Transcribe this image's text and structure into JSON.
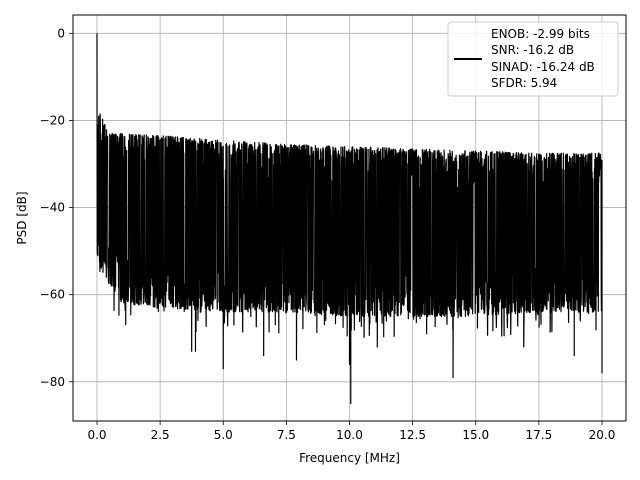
{
  "chart_data": {
    "type": "line",
    "title": "",
    "xlabel": "Frequency [MHz]",
    "ylabel": "PSD [dB]",
    "xlim": [
      -0.95,
      20.95
    ],
    "ylim": [
      -89,
      4.2
    ],
    "x_ticks": [
      0.0,
      2.5,
      5.0,
      7.5,
      10.0,
      12.5,
      15.0,
      17.5,
      20.0
    ],
    "x_tick_labels": [
      "0.0",
      "2.5",
      "5.0",
      "7.5",
      "10.0",
      "12.5",
      "15.0",
      "17.5",
      "20.0"
    ],
    "y_ticks": [
      0,
      -20,
      -40,
      -60,
      -80
    ],
    "y_tick_labels": [
      "0",
      "−20",
      "−40",
      "−60",
      "−80"
    ],
    "grid": true,
    "legend_position": "top-right",
    "series": [
      {
        "color": "#000000",
        "peak": {
          "x": 0.0,
          "y": 0.0
        },
        "noise_envelope": {
          "x": [
            0.0,
            0.5,
            1.0,
            2.5,
            5.0,
            7.5,
            10.0,
            12.5,
            15.0,
            17.5,
            20.0
          ],
          "upper": [
            -17,
            -23,
            -23,
            -23.5,
            -24.5,
            -25.5,
            -26,
            -26.5,
            -27,
            -27.5,
            -27.5
          ],
          "lower": [
            -52,
            -58,
            -62,
            -63,
            -64,
            -64,
            -65,
            -65,
            -65,
            -64,
            -64
          ]
        },
        "deep_minima": [
          {
            "x": 3.75,
            "y": -73
          },
          {
            "x": 3.9,
            "y": -73
          },
          {
            "x": 5.0,
            "y": -77
          },
          {
            "x": 6.6,
            "y": -74
          },
          {
            "x": 7.9,
            "y": -75
          },
          {
            "x": 10.0,
            "y": -76
          },
          {
            "x": 10.05,
            "y": -85
          },
          {
            "x": 11.1,
            "y": -72
          },
          {
            "x": 14.1,
            "y": -79
          },
          {
            "x": 16.9,
            "y": -72
          },
          {
            "x": 18.9,
            "y": -74
          },
          {
            "x": 20.0,
            "y": -78
          }
        ]
      }
    ],
    "legend": {
      "lines": [
        "ENOB: -2.99 bits",
        "SNR: -16.2 dB",
        "SINAD: -16.24 dB",
        "SFDR: 5.94"
      ]
    }
  }
}
